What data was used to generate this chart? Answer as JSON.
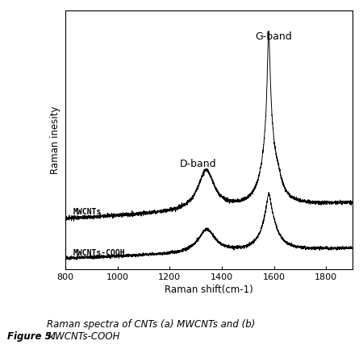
{
  "xlabel": "Raman shift(cm-1)",
  "ylabel": "Raman inesity",
  "xlim": [
    800,
    1900
  ],
  "xticks": [
    800,
    1000,
    1200,
    1400,
    1600,
    1800
  ],
  "line_color": "#000000",
  "background_color": "#ffffff",
  "label_MWCNTs": "MWCNTs",
  "label_MWCNTs_COOH": "MWCNTs-COOH",
  "annotation_D": "D-band",
  "annotation_G": "G-band",
  "caption_bold": "Figure 5.",
  "caption_italic": " Raman spectra of CNTs (a) MWCNTs and (b)\nMWCNTs-COOH",
  "mwcnt_base": 0.28,
  "cooh_base": 0.06,
  "mwcnt_d_amp": 0.22,
  "mwcnt_g_amp_broad": 0.42,
  "mwcnt_g_amp_sharp": 0.55,
  "cooh_d_amp": 0.13,
  "cooh_g_amp_broad": 0.22,
  "cooh_g_amp_sharp": 0.1,
  "noise_seed": 17
}
